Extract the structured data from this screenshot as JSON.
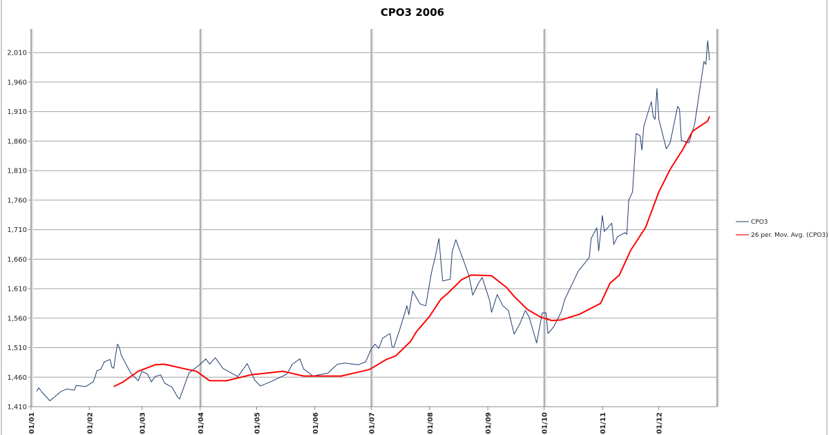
{
  "chart_data": {
    "type": "line",
    "title": "CPO3 2006",
    "xlabel": "",
    "ylabel": "",
    "ylim": [
      1410,
      2050
    ],
    "yticks": [
      1410,
      1460,
      1510,
      1560,
      1610,
      1660,
      1710,
      1760,
      1810,
      1860,
      1910,
      1960,
      2010
    ],
    "ytick_labels": [
      "1,410",
      "1,460",
      "1,510",
      "1,560",
      "1,610",
      "1,660",
      "1,710",
      "1,760",
      "1,810",
      "1,860",
      "1,910",
      "1,960",
      "2,010"
    ],
    "xlim": [
      "2006-01-01",
      "2006-12-31"
    ],
    "xticks": [
      "2006-01-01",
      "2006-02-01",
      "2006-03-01",
      "2006-04-01",
      "2006-05-01",
      "2006-06-01",
      "2006-07-01",
      "2006-08-01",
      "2006-09-01",
      "2006-10-01",
      "2006-11-01",
      "2006-12-01"
    ],
    "xtick_labels": [
      "01/01",
      "01/02",
      "01/03",
      "01/04",
      "01/05",
      "01/06",
      "01/07",
      "01/08",
      "01/09",
      "01/10",
      "01/11",
      "01/12"
    ],
    "grid": {
      "horizontal": true,
      "vertical_quarterly": true
    },
    "legend_position": "right",
    "series": [
      {
        "name": "CPO3",
        "color": "#1f3a6e",
        "points": [
          [
            "2006-01-04",
            1436
          ],
          [
            "2006-01-05",
            1442
          ],
          [
            "2006-01-07",
            1434
          ],
          [
            "2006-01-11",
            1420
          ],
          [
            "2006-01-17",
            1436
          ],
          [
            "2006-01-20",
            1440
          ],
          [
            "2006-01-24",
            1438
          ],
          [
            "2006-01-25",
            1446
          ],
          [
            "2006-01-30",
            1444
          ],
          [
            "2006-02-03",
            1452
          ],
          [
            "2006-02-04",
            1460
          ],
          [
            "2006-02-05",
            1471
          ],
          [
            "2006-02-07",
            1473
          ],
          [
            "2006-02-09",
            1486
          ],
          [
            "2006-02-12",
            1490
          ],
          [
            "2006-02-13",
            1477
          ],
          [
            "2006-02-14",
            1475
          ],
          [
            "2006-02-15",
            1498
          ],
          [
            "2006-02-16",
            1516
          ],
          [
            "2006-02-17",
            1510
          ],
          [
            "2006-02-18",
            1497
          ],
          [
            "2006-02-23",
            1467
          ],
          [
            "2006-02-27",
            1454
          ],
          [
            "2006-03-01",
            1470
          ],
          [
            "2006-03-04",
            1465
          ],
          [
            "2006-03-06",
            1452
          ],
          [
            "2006-03-08",
            1461
          ],
          [
            "2006-03-11",
            1464
          ],
          [
            "2006-03-13",
            1450
          ],
          [
            "2006-03-17",
            1443
          ],
          [
            "2006-03-20",
            1426
          ],
          [
            "2006-03-21",
            1423
          ],
          [
            "2006-03-26",
            1467
          ],
          [
            "2006-04-01",
            1482
          ],
          [
            "2006-04-04",
            1491
          ],
          [
            "2006-04-06",
            1482
          ],
          [
            "2006-04-09",
            1493
          ],
          [
            "2006-04-13",
            1475
          ],
          [
            "2006-04-21",
            1461
          ],
          [
            "2006-04-26",
            1483
          ],
          [
            "2006-04-30",
            1455
          ],
          [
            "2006-05-03",
            1445
          ],
          [
            "2006-05-09",
            1453
          ],
          [
            "2006-05-17",
            1465
          ],
          [
            "2006-05-20",
            1482
          ],
          [
            "2006-05-24",
            1491
          ],
          [
            "2006-05-26",
            1474
          ],
          [
            "2006-05-31",
            1462
          ],
          [
            "2006-06-08",
            1467
          ],
          [
            "2006-06-13",
            1482
          ],
          [
            "2006-06-17",
            1484
          ],
          [
            "2006-06-24",
            1481
          ],
          [
            "2006-06-28",
            1486
          ],
          [
            "2006-07-01",
            1508
          ],
          [
            "2006-07-03",
            1516
          ],
          [
            "2006-07-05",
            1509
          ],
          [
            "2006-07-07",
            1526
          ],
          [
            "2006-07-11",
            1534
          ],
          [
            "2006-07-12",
            1512
          ],
          [
            "2006-07-13",
            1511
          ],
          [
            "2006-07-16",
            1539
          ],
          [
            "2006-07-20",
            1581
          ],
          [
            "2006-07-21",
            1566
          ],
          [
            "2006-07-23",
            1606
          ],
          [
            "2006-07-27",
            1584
          ],
          [
            "2006-07-30",
            1581
          ],
          [
            "2006-08-02",
            1637
          ],
          [
            "2006-08-04",
            1663
          ],
          [
            "2006-08-06",
            1695
          ],
          [
            "2006-08-07",
            1657
          ],
          [
            "2006-08-08",
            1623
          ],
          [
            "2006-08-12",
            1626
          ],
          [
            "2006-08-13",
            1672
          ],
          [
            "2006-08-15",
            1693
          ],
          [
            "2006-08-18",
            1667
          ],
          [
            "2006-08-22",
            1632
          ],
          [
            "2006-08-24",
            1599
          ],
          [
            "2006-08-27",
            1619
          ],
          [
            "2006-08-29",
            1629
          ],
          [
            "2006-09-02",
            1590
          ],
          [
            "2006-09-03",
            1570
          ],
          [
            "2006-09-06",
            1600
          ],
          [
            "2006-09-09",
            1581
          ],
          [
            "2006-09-12",
            1573
          ],
          [
            "2006-09-15",
            1533
          ],
          [
            "2006-09-18",
            1550
          ],
          [
            "2006-09-21",
            1573
          ],
          [
            "2006-09-23",
            1562
          ],
          [
            "2006-09-27",
            1518
          ],
          [
            "2006-09-30",
            1569
          ],
          [
            "2006-10-02",
            1569
          ],
          [
            "2006-10-03",
            1534
          ],
          [
            "2006-10-06",
            1545
          ],
          [
            "2006-10-10",
            1570
          ],
          [
            "2006-10-12",
            1592
          ],
          [
            "2006-10-17",
            1625
          ],
          [
            "2006-10-19",
            1639
          ],
          [
            "2006-10-25",
            1663
          ],
          [
            "2006-10-26",
            1695
          ],
          [
            "2006-10-29",
            1713
          ],
          [
            "2006-10-30",
            1674
          ],
          [
            "2006-11-01",
            1734
          ],
          [
            "2006-11-02",
            1707
          ],
          [
            "2006-11-06",
            1721
          ],
          [
            "2006-11-07",
            1685
          ],
          [
            "2006-11-09",
            1698
          ],
          [
            "2006-11-13",
            1705
          ],
          [
            "2006-11-14",
            1702
          ],
          [
            "2006-11-15",
            1760
          ],
          [
            "2006-11-17",
            1774
          ],
          [
            "2006-11-19",
            1873
          ],
          [
            "2006-11-21",
            1869
          ],
          [
            "2006-11-22",
            1845
          ],
          [
            "2006-11-23",
            1885
          ],
          [
            "2006-11-27",
            1927
          ],
          [
            "2006-11-28",
            1902
          ],
          [
            "2006-11-29",
            1897
          ],
          [
            "2006-11-30",
            1949
          ],
          [
            "2006-12-01",
            1897
          ],
          [
            "2006-12-05",
            1847
          ],
          [
            "2006-12-07",
            1857
          ],
          [
            "2006-12-11",
            1919
          ],
          [
            "2006-12-12",
            1914
          ],
          [
            "2006-12-13",
            1861
          ],
          [
            "2006-12-17",
            1857
          ],
          [
            "2006-12-20",
            1888
          ],
          [
            "2006-12-25",
            1995
          ],
          [
            "2006-12-26",
            1990
          ],
          [
            "2006-12-27",
            2030
          ],
          [
            "2006-12-28",
            1997
          ]
        ]
      },
      {
        "name": "26 per. Mov. Avg. (CPO3)",
        "color": "#ff0000",
        "points": [
          [
            "2006-02-14",
            1444
          ],
          [
            "2006-02-19",
            1452
          ],
          [
            "2006-02-27",
            1470
          ],
          [
            "2006-03-08",
            1481
          ],
          [
            "2006-03-13",
            1482
          ],
          [
            "2006-03-24",
            1474
          ],
          [
            "2006-03-30",
            1470
          ],
          [
            "2006-04-06",
            1454
          ],
          [
            "2006-04-15",
            1454
          ],
          [
            "2006-04-28",
            1464
          ],
          [
            "2006-05-15",
            1470
          ],
          [
            "2006-05-26",
            1462
          ],
          [
            "2006-06-15",
            1462
          ],
          [
            "2006-06-30",
            1473
          ],
          [
            "2006-07-09",
            1490
          ],
          [
            "2006-07-14",
            1496
          ],
          [
            "2006-07-22",
            1521
          ],
          [
            "2006-07-25",
            1537
          ],
          [
            "2006-08-01",
            1563
          ],
          [
            "2006-08-07",
            1592
          ],
          [
            "2006-08-11",
            1603
          ],
          [
            "2006-08-18",
            1625
          ],
          [
            "2006-08-23",
            1633
          ],
          [
            "2006-09-03",
            1632
          ],
          [
            "2006-09-11",
            1612
          ],
          [
            "2006-09-15",
            1597
          ],
          [
            "2006-09-22",
            1575
          ],
          [
            "2006-09-29",
            1562
          ],
          [
            "2006-10-05",
            1556
          ],
          [
            "2006-10-10",
            1557
          ],
          [
            "2006-10-20",
            1567
          ],
          [
            "2006-10-31",
            1585
          ],
          [
            "2006-11-05",
            1619
          ],
          [
            "2006-11-10",
            1633
          ],
          [
            "2006-11-16",
            1675
          ],
          [
            "2006-11-24",
            1714
          ],
          [
            "2006-12-01",
            1774
          ],
          [
            "2006-12-07",
            1812
          ],
          [
            "2006-12-14",
            1847
          ],
          [
            "2006-12-19",
            1877
          ],
          [
            "2006-12-27",
            1894
          ],
          [
            "2006-12-28",
            1902
          ]
        ]
      }
    ]
  }
}
